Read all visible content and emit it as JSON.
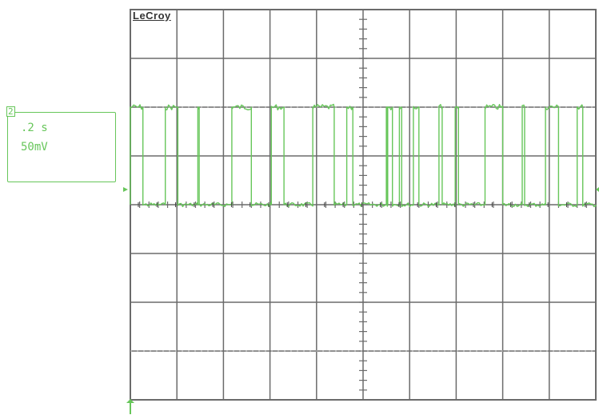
{
  "brand": "LeCroy",
  "channel": {
    "tag": "2",
    "timebase": ".2 s",
    "volts_per_div": "50mV"
  },
  "colors": {
    "trace": "#67c65a",
    "grid": "#6b6b6b",
    "background": "#ffffff"
  },
  "chart_data": {
    "type": "line",
    "title": "",
    "xlabel": "",
    "ylabel": "",
    "x_divisions": 10,
    "y_divisions": 8,
    "grid": true,
    "ylim": [
      -4,
      4
    ],
    "low_level_div": 0,
    "high_level_div": 2,
    "pulses": [
      {
        "start": 0.0,
        "end": 0.27
      },
      {
        "start": 0.75,
        "end": 1.02
      },
      {
        "start": 1.45,
        "end": 1.48
      },
      {
        "start": 2.18,
        "end": 2.6
      },
      {
        "start": 3.03,
        "end": 3.3
      },
      {
        "start": 3.92,
        "end": 4.38
      },
      {
        "start": 4.65,
        "end": 4.78
      },
      {
        "start": 5.5,
        "end": 5.52
      },
      {
        "start": 5.53,
        "end": 5.63
      },
      {
        "start": 5.78,
        "end": 5.83
      },
      {
        "start": 6.08,
        "end": 6.2
      },
      {
        "start": 6.63,
        "end": 6.7
      },
      {
        "start": 6.98,
        "end": 7.05
      },
      {
        "start": 7.62,
        "end": 8.0
      },
      {
        "start": 8.42,
        "end": 8.47
      },
      {
        "start": 8.92,
        "end": 9.2
      },
      {
        "start": 9.6,
        "end": 9.72
      }
    ]
  }
}
